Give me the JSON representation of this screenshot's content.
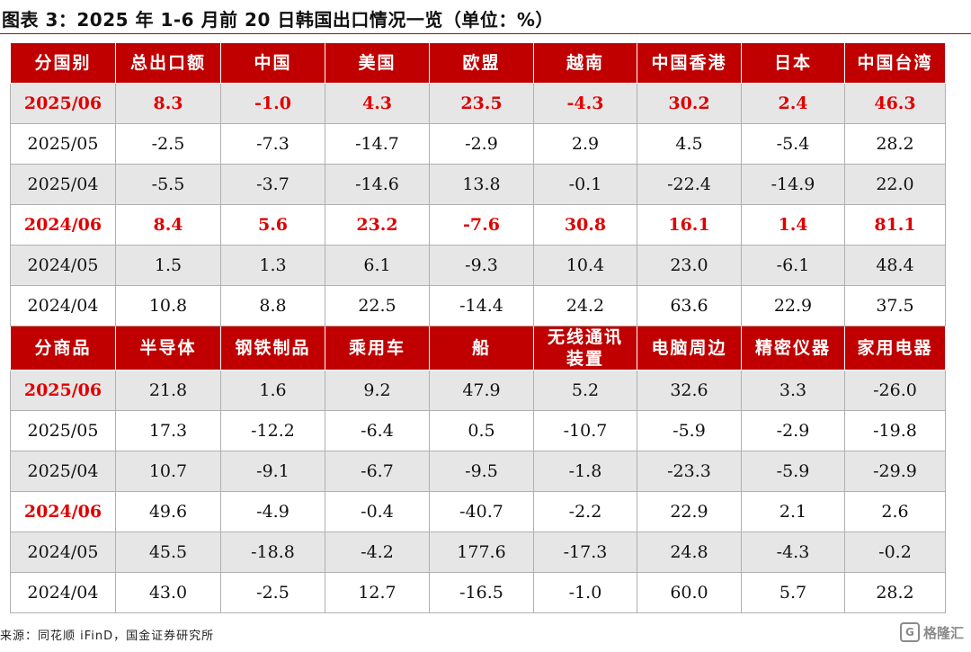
{
  "title": "图表 3：2025 年 1-6 月前 20 日韩国出口情况一览（单位：%）",
  "table1": {
    "headers": [
      "分国别",
      "总出口额",
      "中国",
      "美国",
      "欧盟",
      "越南",
      "中国香港",
      "日本",
      "中国台湾"
    ],
    "rows": [
      {
        "label": "2025/06",
        "values": [
          "8.3",
          "-1.0",
          "4.3",
          "23.5",
          "-4.3",
          "30.2",
          "2.4",
          "46.3"
        ]
      },
      {
        "label": "2025/05",
        "values": [
          "-2.5",
          "-7.3",
          "-14.7",
          "-2.9",
          "2.9",
          "4.5",
          "-5.4",
          "28.2"
        ]
      },
      {
        "label": "2025/04",
        "values": [
          "-5.5",
          "-3.7",
          "-14.6",
          "13.8",
          "-0.1",
          "-22.4",
          "-14.9",
          "22.0"
        ]
      },
      {
        "label": "2024/06",
        "values": [
          "8.4",
          "5.6",
          "23.2",
          "-7.6",
          "30.8",
          "16.1",
          "1.4",
          "81.1"
        ]
      },
      {
        "label": "2024/05",
        "values": [
          "1.5",
          "1.3",
          "6.1",
          "-9.3",
          "10.4",
          "23.0",
          "-6.1",
          "48.4"
        ]
      },
      {
        "label": "2024/04",
        "values": [
          "10.8",
          "8.8",
          "22.5",
          "-14.4",
          "24.2",
          "63.6",
          "22.9",
          "37.5"
        ]
      }
    ]
  },
  "table2": {
    "headers": [
      "分商品",
      "半导体",
      "钢铁制品",
      "乘用车",
      "船",
      "无线通讯\n装置",
      "电脑周边",
      "精密仪器",
      "家用电器"
    ],
    "rows": [
      {
        "label": "2025/06",
        "values": [
          "21.8",
          "1.6",
          "9.2",
          "47.9",
          "5.2",
          "32.6",
          "3.3",
          "-26.0"
        ]
      },
      {
        "label": "2025/05",
        "values": [
          "17.3",
          "-12.2",
          "-6.4",
          "0.5",
          "-10.7",
          "-5.9",
          "-2.9",
          "-19.8"
        ]
      },
      {
        "label": "2025/04",
        "values": [
          "10.7",
          "-9.1",
          "-6.7",
          "-9.5",
          "-1.8",
          "-23.3",
          "-5.9",
          "-29.9"
        ]
      },
      {
        "label": "2024/06",
        "values": [
          "49.6",
          "-4.9",
          "-0.4",
          "-40.7",
          "-2.2",
          "22.9",
          "2.1",
          "2.6"
        ]
      },
      {
        "label": "2024/05",
        "values": [
          "45.5",
          "-18.8",
          "-4.2",
          "177.6",
          "-17.3",
          "24.8",
          "-4.3",
          "-0.2"
        ]
      },
      {
        "label": "2024/04",
        "values": [
          "43.0",
          "-2.5",
          "12.7",
          "-16.5",
          "-1.0",
          "60.0",
          "5.7",
          "28.2"
        ]
      }
    ]
  },
  "source": "来源：同花顺 iFinD，国金证券研究所",
  "watermark": "格隆汇",
  "watermark_icon": "g-logo-icon",
  "colors": {
    "header_bg": "#c00000",
    "highlight_text": "#e00000",
    "shade_bg": "#e6e6e6"
  }
}
